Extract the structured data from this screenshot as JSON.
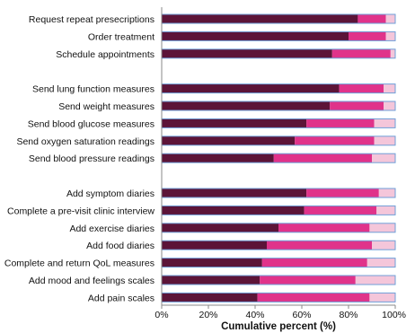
{
  "chart_data": {
    "type": "bar",
    "stacked": true,
    "orientation": "horizontal",
    "xlabel": "Cumulative percent (%)",
    "xlim": [
      0,
      100
    ],
    "xticks": [
      "0%",
      "20%",
      "40%",
      "60%",
      "80%",
      "100%"
    ],
    "grid": false,
    "legend": "none",
    "groups": [
      {
        "categories": [
          "Request repeat presecriptions",
          "Order treatment",
          "Schedule appointments"
        ],
        "cumulative": [
          [
            84,
            96,
            100
          ],
          [
            80,
            96,
            100
          ],
          [
            73,
            98,
            100
          ]
        ]
      },
      {
        "categories": [
          "Send lung function measures",
          "Send weight measures",
          "Send blood glucose measures",
          "Send oxygen saturation readings",
          "Send blood pressure readings"
        ],
        "cumulative": [
          [
            76,
            95,
            100
          ],
          [
            72,
            95,
            100
          ],
          [
            62,
            91,
            100
          ],
          [
            57,
            91,
            100
          ],
          [
            48,
            90,
            100
          ]
        ]
      },
      {
        "categories": [
          "Add symptom diaries",
          "Complete a pre-visit clinic interview",
          "Add exercise diaries",
          "Add food diaries",
          "Complete and return QoL measures",
          "Add mood and feelings scales",
          "Add pain scales"
        ],
        "cumulative": [
          [
            62,
            93,
            100
          ],
          [
            61,
            92,
            100
          ],
          [
            50,
            89,
            100
          ],
          [
            45,
            90,
            100
          ],
          [
            43,
            88,
            100
          ],
          [
            42,
            83,
            100
          ],
          [
            41,
            89,
            100
          ]
        ]
      }
    ],
    "segment_colors": [
      "#5c1438",
      "#e0338a",
      "#f4c6da"
    ],
    "bar_outline_color": "#6f9fd8"
  }
}
